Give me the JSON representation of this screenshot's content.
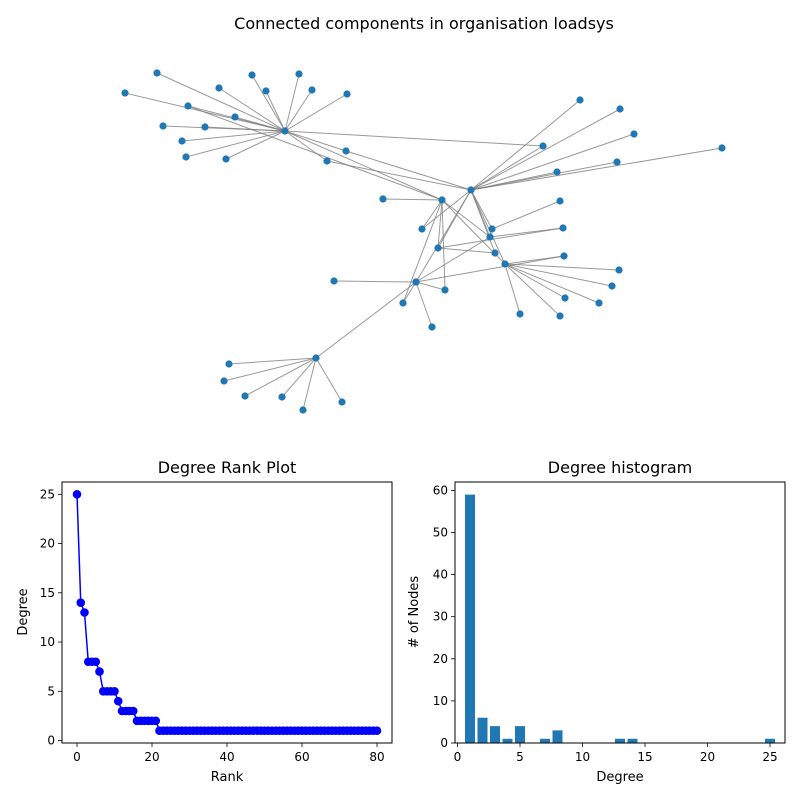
{
  "chart_data": [
    {
      "type": "network",
      "title": "Connected components in organisation loadsys",
      "nodes": [
        {
          "id": "h1"
        },
        {
          "id": "h2"
        },
        {
          "id": "h3"
        },
        {
          "id": "h4"
        },
        {
          "id": "h5"
        },
        {
          "id": "h6"
        },
        {
          "id": "a1"
        },
        {
          "id": "a2"
        },
        {
          "id": "a3"
        },
        {
          "id": "a4"
        },
        {
          "id": "a5"
        },
        {
          "id": "a6"
        },
        {
          "id": "a7"
        },
        {
          "id": "a8"
        },
        {
          "id": "a9"
        },
        {
          "id": "a10"
        },
        {
          "id": "a11"
        },
        {
          "id": "a12"
        },
        {
          "id": "a13"
        },
        {
          "id": "a14"
        },
        {
          "id": "a15"
        },
        {
          "id": "a16"
        },
        {
          "id": "a17"
        },
        {
          "id": "b1"
        },
        {
          "id": "b2"
        },
        {
          "id": "b3"
        },
        {
          "id": "b4"
        },
        {
          "id": "b5"
        },
        {
          "id": "c1"
        },
        {
          "id": "c2"
        },
        {
          "id": "c3"
        },
        {
          "id": "c4"
        },
        {
          "id": "c5"
        },
        {
          "id": "c6"
        },
        {
          "id": "c7"
        },
        {
          "id": "c8"
        },
        {
          "id": "c9"
        },
        {
          "id": "c10"
        },
        {
          "id": "c11"
        },
        {
          "id": "c12"
        },
        {
          "id": "c13"
        },
        {
          "id": "c14"
        },
        {
          "id": "c15"
        },
        {
          "id": "c16"
        },
        {
          "id": "c17"
        },
        {
          "id": "d1"
        },
        {
          "id": "d2"
        },
        {
          "id": "d3"
        },
        {
          "id": "d4"
        },
        {
          "id": "d5"
        },
        {
          "id": "d6"
        }
      ],
      "edges": [
        [
          "h1",
          "a1"
        ],
        [
          "h1",
          "a2"
        ],
        [
          "h1",
          "a3"
        ],
        [
          "h1",
          "a4"
        ],
        [
          "h1",
          "a5"
        ],
        [
          "h1",
          "a6"
        ],
        [
          "h1",
          "a7"
        ],
        [
          "h1",
          "a8"
        ],
        [
          "h1",
          "a9"
        ],
        [
          "h1",
          "a10"
        ],
        [
          "h1",
          "a11"
        ],
        [
          "h1",
          "a12"
        ],
        [
          "h1",
          "a13"
        ],
        [
          "h1",
          "a14"
        ],
        [
          "h1",
          "a15"
        ],
        [
          "h1",
          "a16"
        ],
        [
          "h1",
          "a17"
        ],
        [
          "h1",
          "h3"
        ],
        [
          "h1",
          "h4"
        ],
        [
          "h1",
          "c1"
        ],
        [
          "h1",
          "c13"
        ],
        [
          "a1",
          "a5"
        ],
        [
          "a12",
          "h4"
        ],
        [
          "a9",
          "h4"
        ],
        [
          "h2",
          "b1"
        ],
        [
          "h2",
          "b2"
        ],
        [
          "h2",
          "b3"
        ],
        [
          "h2",
          "b4"
        ],
        [
          "h2",
          "b5"
        ],
        [
          "h2",
          "c1"
        ],
        [
          "h2",
          "c4"
        ],
        [
          "b2",
          "c1"
        ],
        [
          "b5",
          "c4"
        ],
        [
          "h3",
          "c1"
        ],
        [
          "h3",
          "c2"
        ],
        [
          "h3",
          "c3"
        ],
        [
          "h3",
          "c4"
        ],
        [
          "h3",
          "c5"
        ],
        [
          "h3",
          "c6"
        ],
        [
          "h3",
          "c7"
        ],
        [
          "h3",
          "h5"
        ],
        [
          "h3",
          "c8"
        ],
        [
          "h3",
          "c9"
        ],
        [
          "h4",
          "c1"
        ],
        [
          "h4",
          "c2"
        ],
        [
          "h4",
          "c3"
        ],
        [
          "h4",
          "h5"
        ],
        [
          "h4",
          "c10"
        ],
        [
          "h4",
          "h6"
        ],
        [
          "c5",
          "h5"
        ],
        [
          "c6",
          "h5"
        ],
        [
          "c7",
          "h5"
        ],
        [
          "c2",
          "h5"
        ],
        [
          "h5",
          "c11"
        ],
        [
          "h5",
          "c12"
        ],
        [
          "h5",
          "c14"
        ],
        [
          "h5",
          "c15"
        ],
        [
          "h5",
          "c16"
        ],
        [
          "h5",
          "c17"
        ],
        [
          "h5",
          "h6"
        ],
        [
          "h6",
          "c4"
        ],
        [
          "h6",
          "c10"
        ],
        [
          "h6",
          "c12"
        ],
        [
          "h6",
          "c13"
        ],
        [
          "h6",
          "d1"
        ],
        [
          "d1",
          "d2"
        ],
        [
          "d1",
          "d3"
        ],
        [
          "d1",
          "d4"
        ],
        [
          "d1",
          "d5"
        ],
        [
          "d1",
          "d6"
        ],
        [
          "d1",
          "c9"
        ]
      ]
    },
    {
      "type": "line",
      "title": "Degree Rank Plot",
      "xlabel": "Rank",
      "ylabel": "Degree",
      "xlim": [
        -4,
        84
      ],
      "ylim": [
        -0.25,
        26.25
      ],
      "xticks": [
        0,
        20,
        40,
        60,
        80
      ],
      "yticks": [
        0,
        5,
        10,
        15,
        20,
        25
      ],
      "series": [
        {
          "marker": "o",
          "values": [
            25,
            14,
            13,
            8,
            8,
            8,
            7,
            5,
            5,
            5,
            5,
            4,
            3,
            3,
            3,
            3,
            2,
            2,
            2,
            2,
            2,
            2,
            1,
            1,
            1,
            1,
            1,
            1,
            1,
            1,
            1,
            1,
            1,
            1,
            1,
            1,
            1,
            1,
            1,
            1,
            1,
            1,
            1,
            1,
            1,
            1,
            1,
            1,
            1,
            1,
            1,
            1,
            1,
            1,
            1,
            1,
            1,
            1,
            1,
            1,
            1,
            1,
            1,
            1,
            1,
            1,
            1,
            1,
            1,
            1,
            1,
            1,
            1,
            1,
            1,
            1,
            1,
            1,
            1,
            1,
            1
          ]
        }
      ],
      "color": "#0000ff"
    },
    {
      "type": "bar",
      "title": "Degree histogram",
      "xlabel": "Degree",
      "ylabel": "# of Nodes",
      "xlim": [
        -0.2,
        26.2
      ],
      "ylim": [
        0,
        62
      ],
      "xticks": [
        0,
        5,
        10,
        15,
        20,
        25
      ],
      "yticks": [
        0,
        10,
        20,
        30,
        40,
        50,
        60
      ],
      "categories": [
        1,
        2,
        3,
        4,
        5,
        7,
        8,
        13,
        14,
        25
      ],
      "values": [
        59,
        6,
        4,
        1,
        4,
        1,
        3,
        1,
        1,
        1
      ],
      "color": "#1f77b4"
    }
  ]
}
